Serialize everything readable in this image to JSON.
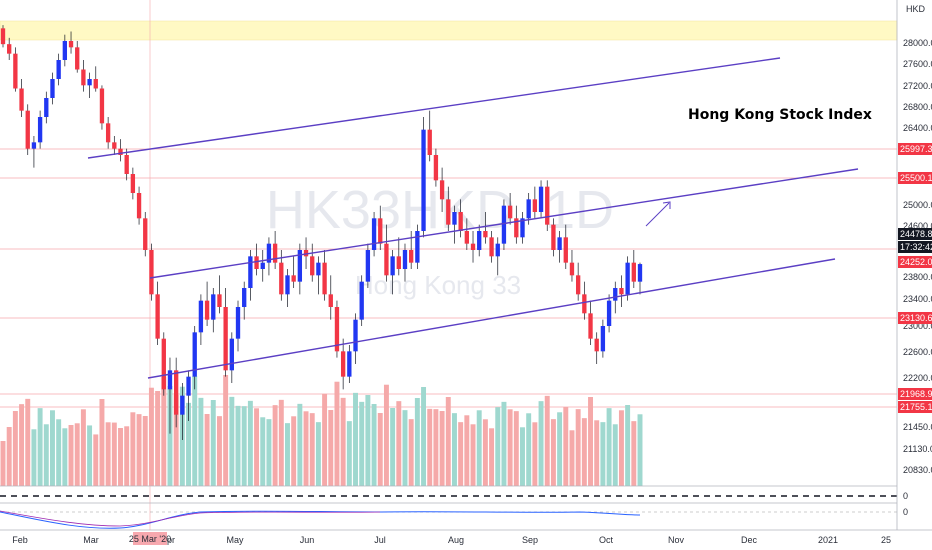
{
  "chart_data": {
    "type": "candlestick",
    "annotation_title": "Hong Kong Stock Index",
    "symbol_watermark": "HK33HKD, 1D",
    "name_watermark": "Hong Kong 33",
    "currency": "HKD",
    "y_axis_ticks": [
      "28000.0",
      "27600.0",
      "27200.0",
      "26800.0",
      "26400.0",
      "25000.0",
      "24600.0",
      "23800.0",
      "23400.0",
      "23000.0",
      "22600.0",
      "22200.0",
      "21450.0",
      "21130.0",
      "20830.0"
    ],
    "x_axis_ticks": [
      "Feb",
      "Mar",
      "Apr",
      "May",
      "Jun",
      "Jul",
      "Aug",
      "Sep",
      "Oct",
      "Nov",
      "Dec",
      "2021",
      "25"
    ],
    "crosshair_date": "25 Mar '20",
    "price_tags": [
      {
        "label": "25997.3",
        "color": "#f23645"
      },
      {
        "label": "25500.1",
        "color": "#f23645"
      },
      {
        "label": "24478.8",
        "color": "#131722"
      },
      {
        "label": "17:32:42",
        "color": "#131722"
      },
      {
        "label": "24252.0",
        "color": "#f23645"
      },
      {
        "label": "23130.6",
        "color": "#f23645"
      },
      {
        "label": "21968.9",
        "color": "#f23645"
      },
      {
        "label": "21755.1",
        "color": "#f23645"
      }
    ],
    "ohlc": [
      [
        28200,
        28250,
        27900,
        27950
      ],
      [
        27950,
        28050,
        27700,
        27800
      ],
      [
        27800,
        27900,
        27200,
        27250
      ],
      [
        27250,
        27400,
        26800,
        26900
      ],
      [
        26900,
        27000,
        26200,
        26300
      ],
      [
        26300,
        26500,
        26000,
        26400
      ],
      [
        26400,
        26900,
        26300,
        26800
      ],
      [
        26800,
        27200,
        26700,
        27100
      ],
      [
        27100,
        27500,
        27000,
        27400
      ],
      [
        27400,
        27800,
        27300,
        27700
      ],
      [
        27700,
        28100,
        27600,
        28000
      ],
      [
        28000,
        28150,
        27800,
        27900
      ],
      [
        27900,
        28000,
        27500,
        27550
      ],
      [
        27550,
        27700,
        27200,
        27300
      ],
      [
        27300,
        27500,
        27100,
        27400
      ],
      [
        27400,
        27600,
        27200,
        27250
      ],
      [
        27250,
        27300,
        26600,
        26700
      ],
      [
        26700,
        26800,
        26300,
        26400
      ],
      [
        26400,
        26500,
        26200,
        26300
      ],
      [
        26300,
        26450,
        26100,
        26200
      ],
      [
        26200,
        26300,
        25800,
        25900
      ],
      [
        25900,
        26000,
        25500,
        25600
      ],
      [
        25600,
        25700,
        25100,
        25200
      ],
      [
        25200,
        25300,
        24600,
        24700
      ],
      [
        24700,
        24800,
        23900,
        24000
      ],
      [
        24000,
        24200,
        23200,
        23300
      ],
      [
        23300,
        23400,
        22400,
        22500
      ],
      [
        22500,
        23000,
        21800,
        22800
      ],
      [
        22800,
        23000,
        21900,
        22100
      ],
      [
        22100,
        22600,
        21700,
        22400
      ],
      [
        22400,
        22800,
        22000,
        22700
      ],
      [
        22700,
        23500,
        22500,
        23400
      ],
      [
        23400,
        24000,
        23200,
        23900
      ],
      [
        23900,
        24200,
        23500,
        23600
      ],
      [
        23600,
        24100,
        23400,
        24000
      ],
      [
        24000,
        24300,
        23700,
        23800
      ],
      [
        23800,
        24100,
        22700,
        22800
      ],
      [
        22800,
        23400,
        22600,
        23300
      ],
      [
        23300,
        23900,
        23100,
        23800
      ],
      [
        23800,
        24200,
        23600,
        24100
      ],
      [
        24100,
        24700,
        23900,
        24600
      ],
      [
        24600,
        24800,
        24300,
        24400
      ],
      [
        24400,
        24700,
        24200,
        24500
      ],
      [
        24500,
        24900,
        24300,
        24800
      ],
      [
        24800,
        25000,
        24400,
        24500
      ],
      [
        24500,
        24700,
        23900,
        24000
      ],
      [
        24000,
        24400,
        23800,
        24300
      ],
      [
        24300,
        24600,
        24100,
        24200
      ],
      [
        24200,
        24800,
        24000,
        24700
      ],
      [
        24700,
        24900,
        24400,
        24600
      ],
      [
        24600,
        24800,
        24200,
        24300
      ],
      [
        24300,
        24600,
        24000,
        24500
      ],
      [
        24500,
        24700,
        23900,
        24000
      ],
      [
        24000,
        24300,
        23600,
        23800
      ],
      [
        23800,
        23900,
        23000,
        23100
      ],
      [
        23100,
        23300,
        22500,
        22700
      ],
      [
        22700,
        23200,
        22600,
        23100
      ],
      [
        23100,
        23700,
        22900,
        23600
      ],
      [
        23600,
        24300,
        23500,
        24200
      ],
      [
        24200,
        24800,
        24100,
        24700
      ],
      [
        24700,
        25300,
        24600,
        25200
      ],
      [
        25200,
        25400,
        24700,
        24800
      ],
      [
        24800,
        25100,
        24200,
        24300
      ],
      [
        24300,
        24700,
        24000,
        24600
      ],
      [
        24600,
        24900,
        24300,
        24400
      ],
      [
        24400,
        24800,
        24200,
        24700
      ],
      [
        24700,
        25000,
        24400,
        24500
      ],
      [
        24500,
        25100,
        24400,
        25000
      ],
      [
        25000,
        26800,
        24900,
        26600
      ],
      [
        26600,
        26900,
        26100,
        26200
      ],
      [
        26200,
        26300,
        25700,
        25800
      ],
      [
        25800,
        26000,
        25300,
        25500
      ],
      [
        25500,
        25700,
        25000,
        25100
      ],
      [
        25100,
        25400,
        24800,
        25300
      ],
      [
        25300,
        25500,
        24900,
        25000
      ],
      [
        25000,
        25200,
        24700,
        24800
      ],
      [
        24800,
        25000,
        24500,
        24700
      ],
      [
        24700,
        25100,
        24600,
        25000
      ],
      [
        25000,
        25300,
        24800,
        24900
      ],
      [
        24900,
        25000,
        24500,
        24600
      ],
      [
        24600,
        24900,
        24300,
        24800
      ],
      [
        24800,
        25500,
        24700,
        25400
      ],
      [
        25400,
        25600,
        25100,
        25200
      ],
      [
        25200,
        25400,
        24800,
        24900
      ],
      [
        24900,
        25300,
        24800,
        25200
      ],
      [
        25200,
        25600,
        25100,
        25500
      ],
      [
        25500,
        25700,
        25200,
        25300
      ],
      [
        25300,
        25800,
        25200,
        25700
      ],
      [
        25700,
        25800,
        25000,
        25100
      ],
      [
        25100,
        25200,
        24600,
        24700
      ],
      [
        24700,
        25000,
        24500,
        24900
      ],
      [
        24900,
        25100,
        24400,
        24500
      ],
      [
        24500,
        24700,
        24200,
        24300
      ],
      [
        24300,
        24500,
        23900,
        24000
      ],
      [
        24000,
        24200,
        23600,
        23700
      ],
      [
        23700,
        23900,
        23200,
        23300
      ],
      [
        23300,
        23400,
        22900,
        23100
      ],
      [
        23100,
        23600,
        23000,
        23500
      ],
      [
        23500,
        24000,
        23400,
        23900
      ],
      [
        23900,
        24200,
        23700,
        24100
      ],
      [
        24100,
        24300,
        23800,
        24000
      ],
      [
        24000,
        24600,
        23900,
        24500
      ],
      [
        24500,
        24700,
        24100,
        24200
      ],
      [
        24200,
        24500,
        24000,
        24478
      ]
    ]
  }
}
